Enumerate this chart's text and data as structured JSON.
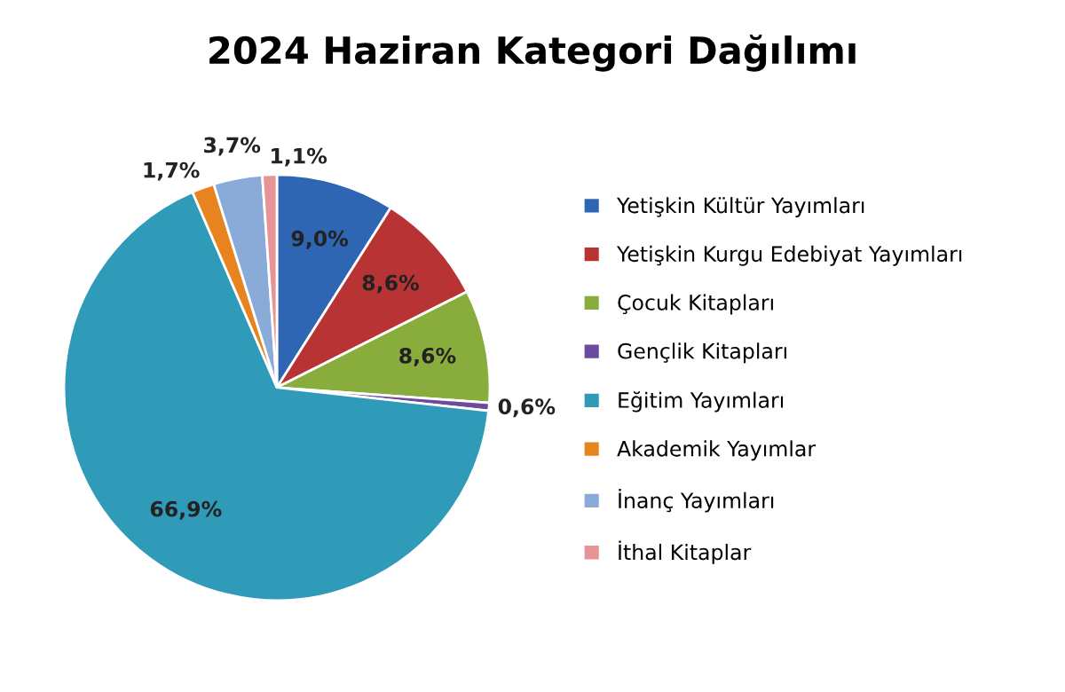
{
  "chart_data": {
    "type": "pie",
    "title": "2024 Haziran Kategori Dağılımı",
    "categories": [
      "Yetişkin Kültür Yayımları",
      "Yetişkin Kurgu Edebiyat Yayımları",
      "Çocuk Kitapları",
      "Gençlik Kitapları",
      "Eğitim Yayımları",
      "Akademik Yayımlar",
      "İnanç Yayımları",
      "İthal Kitaplar"
    ],
    "values": [
      9.0,
      8.6,
      8.6,
      0.6,
      66.9,
      1.7,
      3.7,
      1.1
    ],
    "value_labels": [
      "9,0%",
      "8,6%",
      "8,6%",
      "0,6%",
      "66,9%",
      "1,7%",
      "3,7%",
      "1,1%"
    ],
    "colors": [
      "#2f66b3",
      "#b83434",
      "#89ad3c",
      "#6b4b9c",
      "#2f9bb8",
      "#e8841f",
      "#8aaad8",
      "#e69494"
    ],
    "legend": "right"
  }
}
